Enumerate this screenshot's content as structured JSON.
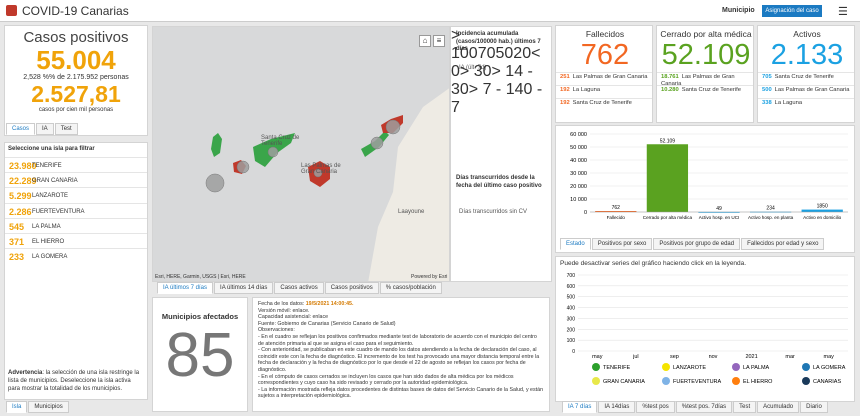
{
  "header": {
    "title": "COVID-19 Canarias",
    "selector_label": "Municipio",
    "button": "Asignación del caso"
  },
  "cases": {
    "title": "Casos positivos",
    "total": "55.004",
    "share": "2,528 %% de 2.175.952 personas",
    "rate": "2.527,81",
    "rate_label": "casos por cien mil personas",
    "tabs": [
      "Casos",
      "IA",
      "Test"
    ]
  },
  "islands": {
    "heading": "Seleccione una isla para filtrar",
    "rows": [
      {
        "value": "23.980",
        "name": "TENERIFE"
      },
      {
        "value": "22.289",
        "name": "GRAN CANARIA"
      },
      {
        "value": "5.299",
        "name": "LANZAROTE"
      },
      {
        "value": "2.286",
        "name": "FUERTEVENTURA"
      },
      {
        "value": "545",
        "name": "LA PALMA"
      },
      {
        "value": "371",
        "name": "EL HIERRO"
      },
      {
        "value": "233",
        "name": "LA GOMERA"
      }
    ],
    "warning_bold": "Advertencia",
    "warning": ": la selección de una isla restringe la lista de municipios. Deseleccione la isla activa para mostrar la totalidad de los municipios.",
    "tabs": [
      "Isla",
      "Municipios"
    ]
  },
  "map": {
    "labels": [
      "Santa Cruz de Tenerife",
      "Las Palmas de Gran Canaria",
      "Laayoune"
    ],
    "attribution": "Esri, HERE, Garmin, USGS | Esri, HERE",
    "powered": "Powered by Esri",
    "legend": {
      "ia_title": "Incidencia acumulada (casos/100000 hab.) últimos 7 días",
      "ia_field": "IA (últ. 7d)",
      "ia_classes": [
        "> 100",
        "70",
        "50",
        "20",
        "< 0"
      ],
      "days_title": "Días transcurridos desde la fecha del último caso positivo",
      "days_field": "Días transcurridos sin CV",
      "days_classes": [
        "> 30",
        "> 14 - 30",
        "> 7 - 14",
        "0 - 7"
      ]
    },
    "tabs": [
      "IA últimos 7 días",
      "IA últimos 14 días",
      "Casos activos",
      "Casos positivos",
      "% casos/población"
    ]
  },
  "municipios": {
    "title": "Municipios afectados",
    "value": "85"
  },
  "info": {
    "date_label": "Fecha de los datos:",
    "date": "19/5/2021 14:00:45.",
    "mobile": "Versión móvil: enlace.",
    "capacity": "Capacidad asistencial: enlace",
    "source": "Fuente: Gobierno de Canarias (Servicio Canario de Salud)",
    "obs_title": "Observaciones:",
    "obs": [
      "- En el cuadro se reflejan los positivos confirmados mediante test de laboratorio de acuerdo con el municipio del centro de atención primaria al que se asigna el caso para el seguimiento.",
      "- Con anterioridad, se publicaban en este cuadro de mando los datos atendiendo a la fecha de declaración del caso, al coincidir este con la fecha de diagnóstico. El incremento de los test ha provocado una mayor distancia temporal entre la fecha de declaración y la fecha de diagnóstico por lo que desde el 22 de agosto se reflejan los casos por fecha de diagnóstico.",
      "- En el cómputo de casos cerrados se incluyen los casos que han sido dados de alta médica por los médicos correspondientes y cuyo caso ha sido revisado y cerrado por la autoridad epidemiológica.",
      "- La información mostrada refleja datos procedentes de distintas bases de datos del Servicio Canario de la Salud, y están sujetos a interpretación epidemiológica."
    ]
  },
  "cards": [
    {
      "title": "Fallecidos",
      "value": "762",
      "color": "#f26722",
      "rows": [
        {
          "value": "251",
          "name": "Las Palmas de Gran Canaria"
        },
        {
          "value": "192",
          "name": "La Laguna"
        },
        {
          "value": "192",
          "name": "Santa Cruz de Tenerife"
        }
      ]
    },
    {
      "title": "Cerrado por alta médica",
      "value": "52.109",
      "color": "#5aa220",
      "rows": [
        {
          "value": "18.761",
          "name": "Las Palmas de Gran Canaria"
        },
        {
          "value": "10.280",
          "name": "Santa Cruz de Tenerife"
        }
      ]
    },
    {
      "title": "Activos",
      "value": "2.133",
      "color": "#1ba1e2",
      "rows": [
        {
          "value": "705",
          "name": "Santa Cruz de Tenerife"
        },
        {
          "value": "500",
          "name": "Las Palmas de Gran Canaria"
        },
        {
          "value": "338",
          "name": "La Laguna"
        }
      ]
    }
  ],
  "chart_data": [
    {
      "type": "bar",
      "categories": [
        "Fallecido",
        "Cerrado por alta médica",
        "Activo hosp. en UCI",
        "Activo hosp. en planta",
        "Activo en domicilio"
      ],
      "values": [
        762,
        52109,
        49,
        234,
        1850
      ],
      "value_labels": [
        "762",
        "52.109",
        "49",
        "234",
        "1850"
      ],
      "colors": [
        "#f26722",
        "#5aa220",
        "#1ba1e2",
        "#1ba1e2",
        "#1ba1e2"
      ],
      "ylim": [
        0,
        60000
      ],
      "yticks": [
        0,
        {
          "value": 10000,
          "label": "10 000"
        },
        {
          "value": 20000,
          "label": "20 000"
        },
        {
          "value": 30000,
          "label": "30 000"
        },
        {
          "value": 40000,
          "label": "40 000"
        },
        {
          "value": 50000,
          "label": "50 000"
        },
        {
          "value": 60000,
          "label": "60 000"
        }
      ],
      "grid": true,
      "tabs": [
        "Estado",
        "Positivos por sexo",
        "Positivos por grupo de edad",
        "Fallecidos por edad y sexo"
      ]
    },
    {
      "type": "line",
      "note": "Puede desactivar series del gráfico haciendo click en la leyenda.",
      "categories": [
        "may",
        "jul",
        "sep",
        "nov",
        "2021",
        "mar",
        "may"
      ],
      "ylim": [
        0,
        700
      ],
      "yticks": [
        0,
        100,
        200,
        300,
        400,
        500,
        600,
        700
      ],
      "grid": true,
      "series": [
        {
          "name": "TENERIFE",
          "color": "#2ca02c"
        },
        {
          "name": "LANZAROTE",
          "color": "#f5e400"
        },
        {
          "name": "LA PALMA",
          "color": "#9467bd"
        },
        {
          "name": "LA GOMERA",
          "color": "#1f77b4"
        },
        {
          "name": "GRAN CANARIA",
          "color": "#e8e84a"
        },
        {
          "name": "FUERTEVENTURA",
          "color": "#7fb3e6"
        },
        {
          "name": "EL HIERRO",
          "color": "#ff7f0e"
        },
        {
          "name": "CANARIAS",
          "color": "#1a3a5a"
        }
      ],
      "tabs": [
        "IA 7 días",
        "IA 14días",
        "%test pos",
        "%test pos. 7días",
        "Test",
        "Acumulado",
        "Diario"
      ]
    }
  ]
}
